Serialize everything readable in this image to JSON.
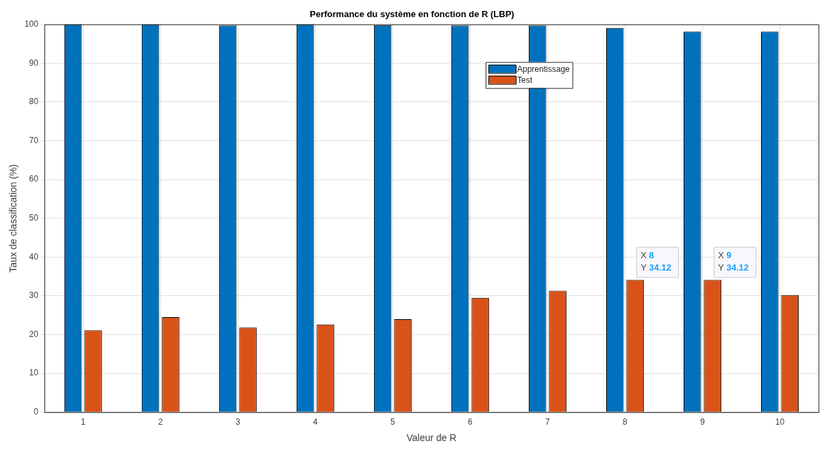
{
  "chart_data": {
    "type": "bar",
    "title": "Performance du système en fonction de R (LBP)",
    "xlabel": "Valeur de R",
    "ylabel": "Taux de classification (%)",
    "categories": [
      "1",
      "2",
      "3",
      "4",
      "5",
      "6",
      "7",
      "8",
      "9",
      "10"
    ],
    "series": [
      {
        "name": "Apprentissage",
        "color": "#0072bd",
        "values": [
          100,
          100,
          99.7,
          100,
          99.8,
          99.7,
          99.7,
          99.1,
          98.1,
          98.1
        ]
      },
      {
        "name": "Test",
        "color": "#d95319",
        "values": [
          21.1,
          24.5,
          21.8,
          22.6,
          24.0,
          29.5,
          31.3,
          34.12,
          34.12,
          30.2
        ]
      }
    ],
    "ylim": [
      0,
      100
    ],
    "yticks": [
      0,
      10,
      20,
      30,
      40,
      50,
      60,
      70,
      80,
      90,
      100
    ],
    "grid": true,
    "legend": "top",
    "annotations": [
      {
        "text": "X 8\nY 34.12",
        "x": "8",
        "y": 34.12
      },
      {
        "text": "X 9\nY 34.12",
        "x": "9",
        "y": 34.12
      }
    ]
  }
}
